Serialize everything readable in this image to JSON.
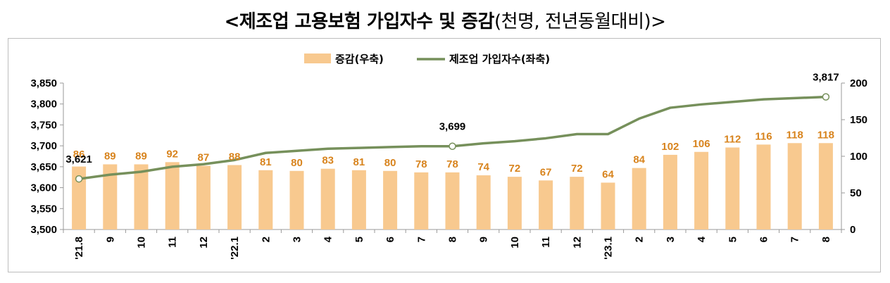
{
  "title": {
    "main": "<제조업 고용보험 가입자수 및 증감",
    "sub": "(천명, 전년동월대비)>"
  },
  "chart_data": {
    "type": "bar+line",
    "categories": [
      "'21.8",
      "9",
      "10",
      "11",
      "12",
      "'22.1",
      "2",
      "3",
      "4",
      "5",
      "6",
      "7",
      "8",
      "9",
      "10",
      "11",
      "12",
      "'23.1",
      "2",
      "3",
      "4",
      "5",
      "6",
      "7",
      "8"
    ],
    "series": [
      {
        "name": "증감(우축)",
        "type": "bar",
        "axis": "right",
        "values": [
          86,
          89,
          89,
          92,
          87,
          88,
          81,
          80,
          83,
          81,
          80,
          78,
          78,
          74,
          72,
          67,
          72,
          64,
          84,
          102,
          106,
          112,
          116,
          118,
          118
        ],
        "color": "#f8c98f",
        "label_color": "#d8841e"
      },
      {
        "name": "제조업 가입자수(좌축)",
        "type": "line",
        "axis": "left",
        "values": [
          3621,
          3631,
          3638,
          3650,
          3656,
          3666,
          3683,
          3688,
          3693,
          3695,
          3697,
          3699,
          3699,
          3706,
          3711,
          3718,
          3728,
          3728,
          3765,
          3791,
          3799,
          3805,
          3811,
          3814,
          3817
        ],
        "color": "#76905b"
      }
    ],
    "point_labels": [
      {
        "index": 0,
        "text": "3,621"
      },
      {
        "index": 12,
        "text": "3,699"
      },
      {
        "index": 24,
        "text": "3,817"
      }
    ],
    "y_left": {
      "min": 3500,
      "max": 3850,
      "ticks": [
        "3,500",
        "3,550",
        "3,600",
        "3,650",
        "3,700",
        "3,750",
        "3,800",
        "3,850"
      ]
    },
    "y_right": {
      "min": 0,
      "max": 200,
      "ticks": [
        "0",
        "50",
        "100",
        "150",
        "200"
      ]
    },
    "legend_position": "top-center",
    "grid": false
  }
}
